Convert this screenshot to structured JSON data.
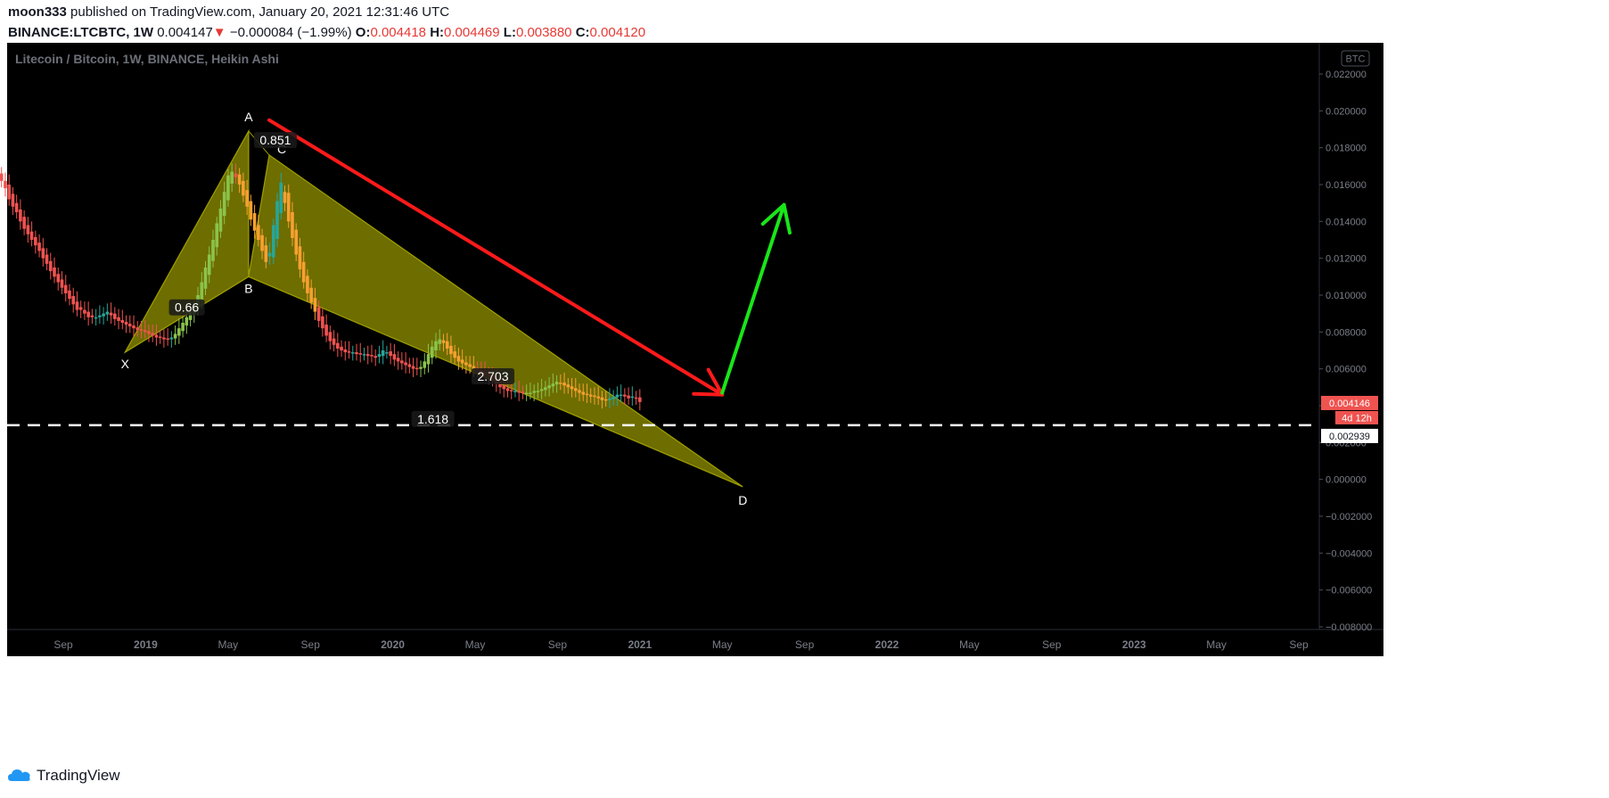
{
  "header": {
    "author": "moon333",
    "published_text": "published on TradingView.com, January 20, 2021 12:31:46 UTC",
    "symbol": "BINANCE:LTCBTC, 1W",
    "price": "0.004147",
    "change_arrow": "▼",
    "change": "−0.000084 (−1.99%)",
    "o_label": "O:",
    "o_value": "0.004418",
    "h_label": "H:",
    "h_value": "0.004469",
    "l_label": "L:",
    "l_value": "0.003880",
    "c_label": "C:",
    "c_value": "0.004120"
  },
  "footer": {
    "brand": "TradingView"
  },
  "colors": {
    "background": "#000000",
    "bull": "#26a69a",
    "bull_light": "#8bc34a",
    "bear": "#ef5350",
    "bear_orange": "#f7a030",
    "pattern_fill": "#808000",
    "red_arrow": "#ff1a1a",
    "green_arrow": "#19e619",
    "price_badge": "#ef5350"
  },
  "chart_data": {
    "type": "candlestick",
    "chart_style": "Heikin Ashi",
    "title": "Litecoin / Bitcoin, 1W, BINANCE, Heikin Ashi",
    "currency_badge": "BTC",
    "ylim": [
      -0.008,
      0.022
    ],
    "y_ticks": [
      "0.022000",
      "0.020000",
      "0.018000",
      "0.016000",
      "0.014000",
      "0.012000",
      "0.010000",
      "0.008000",
      "0.006000",
      "0.004000",
      "0.002000",
      "0.000000",
      "−0.002000",
      "−0.004000",
      "−0.006000",
      "−0.008000"
    ],
    "x_ticks": [
      "Sep",
      "2019",
      "May",
      "Sep",
      "2020",
      "May",
      "Sep",
      "2021",
      "May",
      "Sep",
      "2022",
      "May",
      "Sep",
      "2023",
      "May",
      "Sep"
    ],
    "x_tick_dates": [
      "2018-09",
      "2019-01",
      "2019-05",
      "2019-09",
      "2020-01",
      "2020-05",
      "2020-09",
      "2021-01",
      "2021-05",
      "2021-09",
      "2022-01",
      "2022-05",
      "2022-09",
      "2023-01",
      "2023-05",
      "2023-09"
    ],
    "current_price": "0.004146",
    "countdown": "4d 12h",
    "horizontal_line": {
      "value": 0.002939,
      "label": "0.002939",
      "style": "dashed"
    },
    "harmonic_pattern": {
      "points": [
        {
          "label": "X",
          "date": "2018-12",
          "value": 0.0069
        },
        {
          "label": "A",
          "date": "2019-06",
          "value": 0.0189
        },
        {
          "label": "B",
          "date": "2019-06",
          "value": 0.011
        },
        {
          "label": "C",
          "date": "2019-07",
          "value": 0.0176
        },
        {
          "label": "D",
          "date": "2021-06",
          "value": -0.0004
        }
      ],
      "ratios": [
        {
          "text": "0.66",
          "between": "X-B"
        },
        {
          "text": "0.851",
          "between": "A-C"
        },
        {
          "text": "1.618",
          "between": "X-D"
        },
        {
          "text": "2.703",
          "between": "B-D"
        }
      ]
    },
    "arrows": [
      {
        "color": "red",
        "from": {
          "date": "2019-07",
          "value": 0.0195
        },
        "to": {
          "date": "2021-05",
          "value": 0.0046
        }
      },
      {
        "color": "green",
        "from": {
          "date": "2021-05",
          "value": 0.0047
        },
        "to": {
          "date": "2021-08",
          "value": 0.0149
        }
      }
    ],
    "candles": {
      "start": "2018-06",
      "end": "2021-01",
      "close": [
        0.0162,
        0.0158,
        0.0152,
        0.0148,
        0.0145,
        0.014,
        0.0136,
        0.0133,
        0.013,
        0.0127,
        0.0124,
        0.012,
        0.0117,
        0.0113,
        0.011,
        0.0107,
        0.0104,
        0.0101,
        0.0098,
        0.0095,
        0.0092,
        0.0092,
        0.009,
        0.0088,
        0.0088,
        0.0088,
        0.0089,
        0.009,
        0.0091,
        0.0089,
        0.0087,
        0.0086,
        0.0085,
        0.0084,
        0.0083,
        0.0082,
        0.0081,
        0.0081,
        0.008,
        0.0079,
        0.0078,
        0.0077,
        0.0077,
        0.0076,
        0.0076,
        0.0077,
        0.0079,
        0.0082,
        0.0085,
        0.0088,
        0.0091,
        0.0094,
        0.01,
        0.0107,
        0.0115,
        0.0122,
        0.013,
        0.0139,
        0.0147,
        0.0156,
        0.0165,
        0.0167,
        0.0164,
        0.016,
        0.0154,
        0.0148,
        0.0141,
        0.0135,
        0.013,
        0.0124,
        0.0118,
        0.0123,
        0.0138,
        0.0151,
        0.0161,
        0.015,
        0.014,
        0.0131,
        0.0122,
        0.0114,
        0.0107,
        0.0101,
        0.0096,
        0.0091,
        0.0086,
        0.0082,
        0.0078,
        0.0075,
        0.0073,
        0.0071,
        0.007,
        0.0069,
        0.0069,
        0.0069,
        0.0068,
        0.0068,
        0.0068,
        0.0067,
        0.0067,
        0.0066,
        0.0068,
        0.007,
        0.0069,
        0.0067,
        0.0065,
        0.0064,
        0.0063,
        0.0062,
        0.0061,
        0.006,
        0.006,
        0.0061,
        0.0064,
        0.0068,
        0.0072,
        0.0075,
        0.0076,
        0.0074,
        0.0071,
        0.0068,
        0.0066,
        0.0064,
        0.0063,
        0.0062,
        0.0061,
        0.006,
        0.0059,
        0.0058,
        0.0057,
        0.0056,
        0.0054,
        0.0052,
        0.005,
        0.0049,
        0.0048,
        0.0048,
        0.0048,
        0.0047,
        0.0047,
        0.0047,
        0.0047,
        0.0048,
        0.0048,
        0.0049,
        0.005,
        0.0051,
        0.0052,
        0.0053,
        0.0052,
        0.0051,
        0.005,
        0.0049,
        0.0048,
        0.0047,
        0.0046,
        0.0046,
        0.0045,
        0.0045,
        0.0044,
        0.0043,
        0.0043,
        0.0044,
        0.0045,
        0.0046,
        0.0046,
        0.0045,
        0.0044,
        0.0045,
        0.0044,
        0.0042
      ]
    }
  }
}
